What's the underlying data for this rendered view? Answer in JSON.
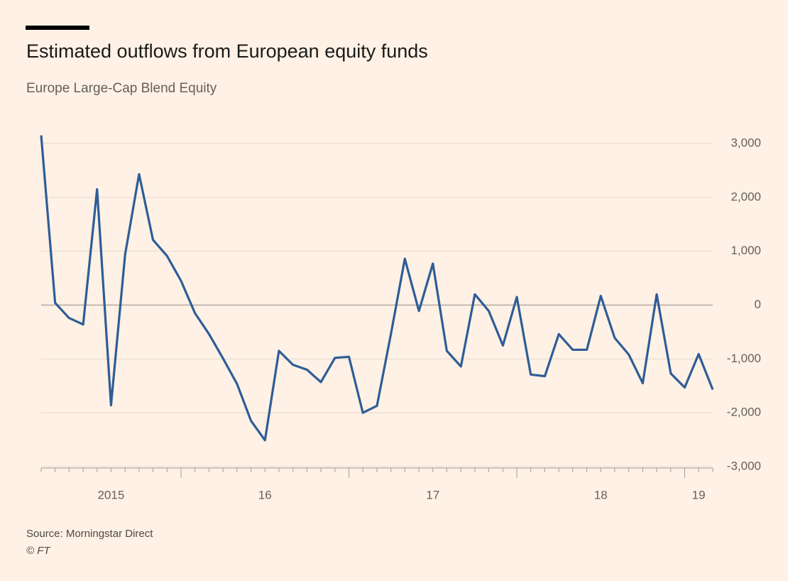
{
  "chart_data": {
    "type": "line",
    "title": "Estimated outflows from European equity funds",
    "subtitle": "Europe Large-Cap Blend Equity",
    "source": "Source: Morningstar Direct",
    "credit": "© FT",
    "x": [
      2015.167,
      2015.25,
      2015.333,
      2015.417,
      2015.5,
      2015.583,
      2015.667,
      2015.75,
      2015.833,
      2015.917,
      2016.0,
      2016.083,
      2016.167,
      2016.25,
      2016.333,
      2016.417,
      2016.5,
      2016.583,
      2016.667,
      2016.75,
      2016.833,
      2016.917,
      2017.0,
      2017.083,
      2017.167,
      2017.25,
      2017.333,
      2017.417,
      2017.5,
      2017.583,
      2017.667,
      2017.75,
      2017.833,
      2017.917,
      2018.0,
      2018.083,
      2018.167,
      2018.25,
      2018.333,
      2018.417,
      2018.5,
      2018.583,
      2018.667,
      2018.75,
      2018.833,
      2018.917,
      2019.0,
      2019.083,
      2019.167
    ],
    "series": [
      {
        "name": "Europe Large-Cap Blend Equity",
        "color": "#2e5d97",
        "values": [
          3150,
          40,
          -240,
          -360,
          2150,
          -1860,
          940,
          2430,
          1210,
          910,
          450,
          -150,
          -540,
          -990,
          -1460,
          -2150,
          -2510,
          -850,
          -1110,
          -1200,
          -1430,
          -980,
          -960,
          -2000,
          -1870,
          -540,
          860,
          -110,
          770,
          -850,
          -1140,
          200,
          -110,
          -750,
          150,
          -1290,
          -1320,
          -540,
          -830,
          -830,
          170,
          -610,
          -920,
          -1450,
          200,
          -1270,
          -1530,
          -910,
          -1570
        ]
      }
    ],
    "xlim": [
      2015.167,
      2019.167
    ],
    "xticks": [
      {
        "value": 2015.583,
        "label": "2015"
      },
      {
        "value": 2016.5,
        "label": "16"
      },
      {
        "value": 2017.5,
        "label": "17"
      },
      {
        "value": 2018.5,
        "label": "18"
      },
      {
        "value": 2019.083,
        "label": "19"
      }
    ],
    "ylim": [
      -3000,
      3000
    ],
    "yticks": [
      {
        "value": 3000,
        "label": "3,000"
      },
      {
        "value": 2000,
        "label": "2,000"
      },
      {
        "value": 1000,
        "label": "1,000"
      },
      0,
      {
        "value": -1000,
        "label": "-1,000"
      },
      {
        "value": -2000,
        "label": "-2,000"
      },
      {
        "value": -3000,
        "label": "-3,000"
      }
    ],
    "grid": true
  }
}
